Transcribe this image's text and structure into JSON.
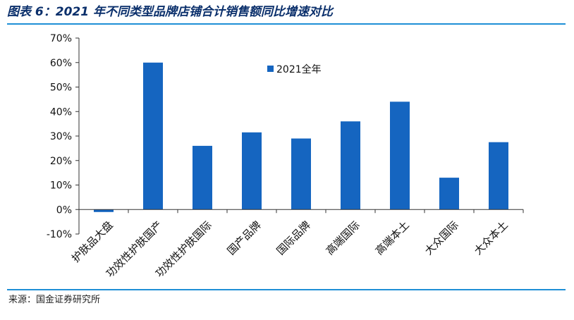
{
  "figure": {
    "title": "图表 6：2021 年不同类型品牌店铺合计销售额同比增速对比",
    "source": "来源：国金证券研究所"
  },
  "chart_data": {
    "type": "bar",
    "categories": [
      "护肤品大盘",
      "功效性护肤国产",
      "功效性护肤国际",
      "国产品牌",
      "国际品牌",
      "高端国际",
      "高端本土",
      "大众国际",
      "大众本土"
    ],
    "series": [
      {
        "name": "2021全年",
        "values": [
          -1,
          60,
          26,
          31.5,
          29,
          36,
          44,
          13,
          27.5
        ],
        "color": "#1565c0"
      }
    ],
    "ylim": [
      -10,
      70
    ],
    "yticks": [
      -10,
      0,
      10,
      20,
      30,
      40,
      50,
      60,
      70
    ],
    "ytick_labels": [
      "-10%",
      "0%",
      "10%",
      "20%",
      "30%",
      "40%",
      "50%",
      "60%",
      "70%"
    ],
    "legend_position": "top-center",
    "grid": false
  }
}
